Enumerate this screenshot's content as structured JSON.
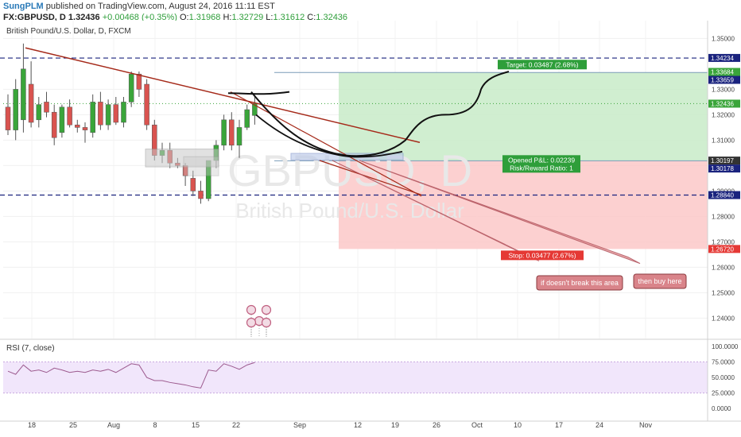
{
  "header": {
    "author": "SungPLM",
    "published": "published on TradingView.com, August 24, 2016 11:11 EST",
    "symbol": "FX:GBPUSD, D",
    "price": "1.32436",
    "change": "+0.00468 (+0.35%)",
    "o_label": "O:",
    "o_val": "1.31968",
    "h_label": "H:",
    "h_val": "1.32729",
    "l_label": "L:",
    "l_val": "1.31612",
    "c_label": "C:",
    "c_val": "1.32436"
  },
  "chart_data": {
    "type": "candlestick",
    "title": "British Pound/U.S. Dollar, D, FXCM",
    "watermark_symbol": "GBPUSD, D",
    "watermark_name": "British Pound/U.S. Dollar",
    "xaxis_ticks": [
      "18",
      "25",
      "Aug",
      "8",
      "15",
      "22",
      "Sep",
      "12",
      "19",
      "26",
      "Oct",
      "10",
      "17",
      "24",
      "Nov"
    ],
    "yaxis_ticks": [
      "1.35000",
      "1.33000",
      "1.32000",
      "1.31000",
      "1.30000",
      "1.29000",
      "1.28000",
      "1.27000",
      "1.26000",
      "1.25000",
      "1.24000"
    ],
    "ylim": [
      1.232,
      1.357
    ],
    "candles": [
      {
        "o": 1.323,
        "h": 1.328,
        "l": 1.312,
        "c": 1.314
      },
      {
        "o": 1.314,
        "h": 1.334,
        "l": 1.31,
        "c": 1.33
      },
      {
        "o": 1.318,
        "h": 1.348,
        "l": 1.313,
        "c": 1.338
      },
      {
        "o": 1.332,
        "h": 1.341,
        "l": 1.315,
        "c": 1.317
      },
      {
        "o": 1.318,
        "h": 1.327,
        "l": 1.315,
        "c": 1.324
      },
      {
        "o": 1.325,
        "h": 1.329,
        "l": 1.319,
        "c": 1.321
      },
      {
        "o": 1.321,
        "h": 1.324,
        "l": 1.308,
        "c": 1.311
      },
      {
        "o": 1.313,
        "h": 1.324,
        "l": 1.311,
        "c": 1.323
      },
      {
        "o": 1.323,
        "h": 1.326,
        "l": 1.315,
        "c": 1.316
      },
      {
        "o": 1.316,
        "h": 1.318,
        "l": 1.313,
        "c": 1.315
      },
      {
        "o": 1.315,
        "h": 1.317,
        "l": 1.309,
        "c": 1.314
      },
      {
        "o": 1.313,
        "h": 1.328,
        "l": 1.311,
        "c": 1.325
      },
      {
        "o": 1.325,
        "h": 1.329,
        "l": 1.314,
        "c": 1.316
      },
      {
        "o": 1.316,
        "h": 1.326,
        "l": 1.314,
        "c": 1.324
      },
      {
        "o": 1.324,
        "h": 1.327,
        "l": 1.316,
        "c": 1.317
      },
      {
        "o": 1.317,
        "h": 1.327,
        "l": 1.315,
        "c": 1.325
      },
      {
        "o": 1.325,
        "h": 1.337,
        "l": 1.323,
        "c": 1.336
      },
      {
        "o": 1.336,
        "h": 1.337,
        "l": 1.327,
        "c": 1.33
      },
      {
        "o": 1.332,
        "h": 1.334,
        "l": 1.314,
        "c": 1.316
      },
      {
        "o": 1.316,
        "h": 1.318,
        "l": 1.302,
        "c": 1.304
      },
      {
        "o": 1.304,
        "h": 1.309,
        "l": 1.301,
        "c": 1.306
      },
      {
        "o": 1.306,
        "h": 1.309,
        "l": 1.299,
        "c": 1.301
      },
      {
        "o": 1.301,
        "h": 1.303,
        "l": 1.299,
        "c": 1.3
      },
      {
        "o": 1.3,
        "h": 1.301,
        "l": 1.292,
        "c": 1.296
      },
      {
        "o": 1.295,
        "h": 1.298,
        "l": 1.288,
        "c": 1.29
      },
      {
        "o": 1.29,
        "h": 1.294,
        "l": 1.285,
        "c": 1.287
      },
      {
        "o": 1.287,
        "h": 1.302,
        "l": 1.286,
        "c": 1.302
      },
      {
        "o": 1.302,
        "h": 1.31,
        "l": 1.299,
        "c": 1.308
      },
      {
        "o": 1.308,
        "h": 1.32,
        "l": 1.306,
        "c": 1.318
      },
      {
        "o": 1.318,
        "h": 1.321,
        "l": 1.306,
        "c": 1.308
      },
      {
        "o": 1.308,
        "h": 1.318,
        "l": 1.303,
        "c": 1.315
      },
      {
        "o": 1.315,
        "h": 1.324,
        "l": 1.314,
        "c": 1.322
      },
      {
        "o": 1.3197,
        "h": 1.3273,
        "l": 1.3161,
        "c": 1.3244
      }
    ],
    "rsi": {
      "label": "RSI (7, close)",
      "ylim": [
        -15,
        110
      ],
      "ticks": [
        "100.0000",
        "75.0000",
        "50.0000",
        "25.0000",
        "0.0000"
      ],
      "tick_values": [
        100,
        75,
        50,
        25,
        0
      ],
      "band": [
        25,
        75
      ],
      "values": [
        60,
        55,
        70,
        60,
        62,
        58,
        65,
        62,
        58,
        60,
        58,
        62,
        60,
        63,
        58,
        65,
        72,
        70,
        50,
        45,
        45,
        42,
        40,
        38,
        35,
        33,
        62,
        60,
        72,
        68,
        63,
        70,
        74
      ]
    },
    "levels": [
      {
        "value": 1.3423,
        "style": "dash",
        "color": "#1a237e"
      },
      {
        "value": 1.2884,
        "style": "dash",
        "color": "#1a237e"
      }
    ],
    "position": {
      "entry": 1.3019,
      "target": 1.3366,
      "stop": 1.2672,
      "target_label": "Target: 0.03487 (2.68%)",
      "stop_label": "Stop: 0.03477 (2.67%)",
      "pl_label": "Opened P&L: 0.02239",
      "rr_label": "Risk/Reward Ratio: 1"
    },
    "price_tags": [
      {
        "value": 1.34234,
        "text": "1.34234",
        "bg": "#1a237e",
        "fg": "#ffffff"
      },
      {
        "value": 1.33684,
        "text": "1.33684",
        "bg": "#3aa53a",
        "fg": "#ffffff"
      },
      {
        "value": 1.33659,
        "text": "1.33659",
        "bg": "#1a237e",
        "fg": "#ffffff"
      },
      {
        "value": 1.32436,
        "text": "1.32436",
        "bg": "#3aa53a",
        "fg": "#ffffff"
      },
      {
        "value": 1.30197,
        "text": "1.30197",
        "bg": "#333333",
        "fg": "#ffffff"
      },
      {
        "value": 1.30178,
        "text": "1.30178",
        "bg": "#1a237e",
        "fg": "#ffffff"
      },
      {
        "value": 1.2884,
        "text": "1.28840",
        "bg": "#1a237e",
        "fg": "#ffffff"
      },
      {
        "value": 1.2672,
        "text": "1.26720",
        "bg": "#e53935",
        "fg": "#ffffff"
      }
    ],
    "callouts": [
      "if doesn't break this area",
      "then buy here"
    ],
    "colors": {
      "up": "#3aa53a",
      "down": "#d9534f",
      "trend": "#a52a1a",
      "target_zone": "#c8ebc8",
      "stop_zone": "#fbc8c8"
    }
  }
}
